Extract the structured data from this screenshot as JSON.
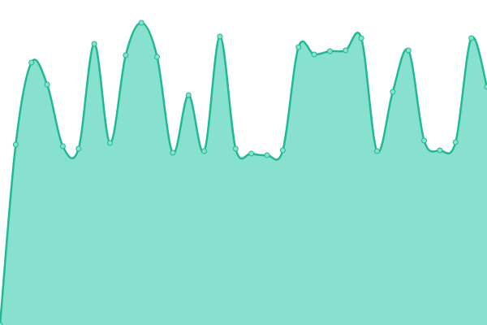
{
  "chart_data": {
    "type": "area",
    "values": [
      0,
      222,
      323,
      296,
      220,
      217,
      346,
      224,
      332,
      372,
      330,
      212,
      283,
      214,
      355,
      217,
      211,
      209,
      215,
      342,
      333,
      337,
      338,
      353,
      214,
      287,
      338,
      227,
      215,
      225,
      353,
      293
    ],
    "ylim": [
      0,
      400
    ],
    "color": "#1fb994",
    "fill": "#88e1cf"
  }
}
